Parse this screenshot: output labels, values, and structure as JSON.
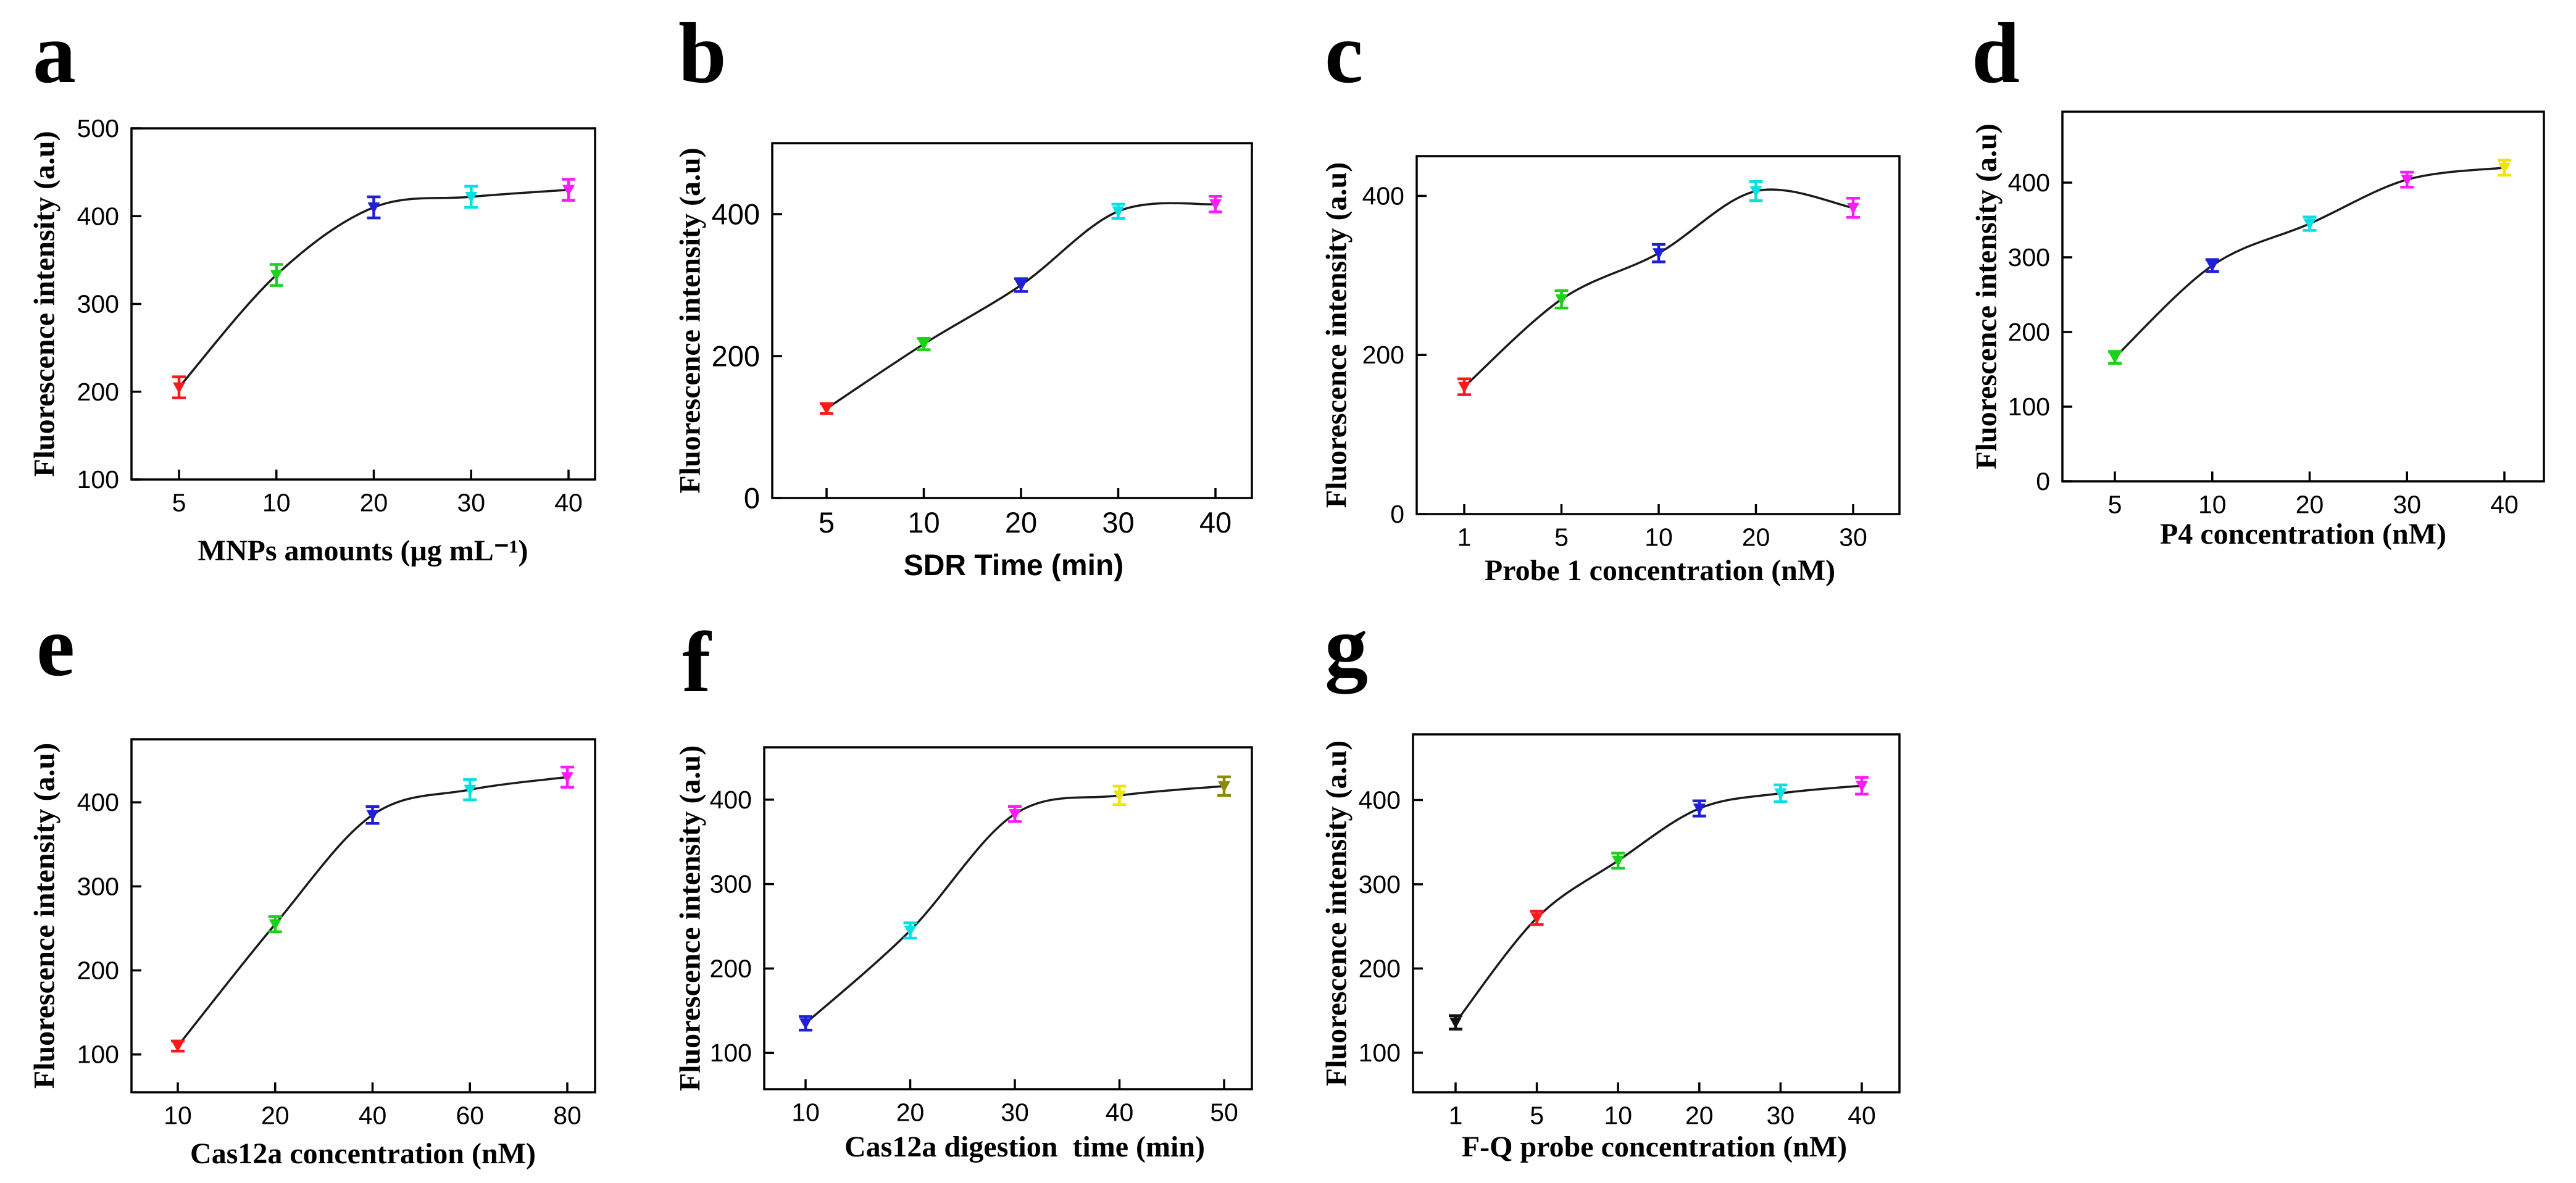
{
  "chart_data": [
    {
      "panel": "a",
      "type": "line",
      "title": "",
      "xlabel": "MNPs amounts (μg mL⁻¹)",
      "ylabel": "Fluorescence intensity (a.u)",
      "categories": [
        "5",
        "10",
        "20",
        "30",
        "40"
      ],
      "values": [
        205,
        333,
        410,
        422,
        430
      ],
      "errors": [
        12,
        12,
        12,
        12,
        12
      ],
      "point_colors": [
        "#ff1a1a",
        "#1ad21a",
        "#1f1fd6",
        "#00e1e1",
        "#ff1aff"
      ],
      "ylim": [
        100,
        500
      ],
      "yticks": [
        100,
        200,
        300,
        400,
        500
      ]
    },
    {
      "panel": "b",
      "type": "line",
      "title": "",
      "xlabel": "SDR Time (min)",
      "ylabel": "Fluorescence intensity (a.u)",
      "categories": [
        "5",
        "10",
        "20",
        "30",
        "40"
      ],
      "values": [
        126,
        217,
        300,
        404,
        414
      ],
      "errors": [
        7,
        8,
        9,
        10,
        11
      ],
      "point_colors": [
        "#ff1a1a",
        "#1ad21a",
        "#1f1fd6",
        "#00e1e1",
        "#ff1aff"
      ],
      "ylim": [
        0,
        500
      ],
      "yticks": [
        0,
        200,
        400
      ]
    },
    {
      "panel": "c",
      "type": "line",
      "title": "",
      "xlabel": "Probe 1 concentration (nM)",
      "ylabel": "Fluorescence intensity (a.u)",
      "categories": [
        "1",
        "5",
        "10",
        "20",
        "30"
      ],
      "values": [
        160,
        270,
        328,
        406,
        385
      ],
      "errors": [
        10,
        11,
        11,
        12,
        12
      ],
      "point_colors": [
        "#ff1a1a",
        "#1ad21a",
        "#1f1fd6",
        "#00e1e1",
        "#ff1aff"
      ],
      "ylim": [
        0,
        450
      ],
      "yticks": [
        0,
        200,
        400
      ]
    },
    {
      "panel": "d",
      "type": "line",
      "title": "",
      "xlabel": "P4 concentration (nM)",
      "ylabel": "Fluorescence intensity (a.u)",
      "categories": [
        "5",
        "10",
        "20",
        "30",
        "40"
      ],
      "values": [
        166,
        289,
        345,
        404,
        420
      ],
      "errors": [
        8,
        8,
        9,
        10,
        10
      ],
      "point_colors": [
        "#1ad21a",
        "#1f1fd6",
        "#00e1e1",
        "#ff1aff",
        "#f0e400"
      ],
      "ylim": [
        0,
        495
      ],
      "yticks": [
        0,
        100,
        200,
        300,
        400
      ]
    },
    {
      "panel": "e",
      "type": "line",
      "title": "",
      "xlabel": "Cas12a concentration (nM)",
      "ylabel": "Fluorescence intensity (a.u)",
      "categories": [
        "10",
        "20",
        "40",
        "60",
        "80"
      ],
      "values": [
        110,
        255,
        385,
        415,
        430
      ],
      "errors": [
        6,
        9,
        10,
        12,
        12
      ],
      "point_colors": [
        "#ff1a1a",
        "#1ad21a",
        "#1f1fd6",
        "#00e1e1",
        "#ff1aff"
      ],
      "ylim": [
        55,
        475
      ],
      "yticks": [
        100,
        200,
        300,
        400
      ]
    },
    {
      "panel": "f",
      "type": "line",
      "title": "",
      "xlabel": "Cas12a digestion  time (min)",
      "ylabel": "Fluorescence intensity (a.u)",
      "categories": [
        "10",
        "20",
        "30",
        "40",
        "50"
      ],
      "values": [
        135,
        245,
        383,
        405,
        416
      ],
      "errors": [
        8,
        9,
        9,
        11,
        11
      ],
      "point_colors": [
        "#1f1fd6",
        "#00e1e1",
        "#ff1aff",
        "#f0e400",
        "#8c8a00"
      ],
      "ylim": [
        57,
        462
      ],
      "yticks": [
        100,
        200,
        300,
        400
      ]
    },
    {
      "panel": "g",
      "type": "line",
      "title": "",
      "xlabel": "F-Q probe concentration (nM)",
      "ylabel": "Fluorescence intensity (a.u)",
      "categories": [
        "1",
        "5",
        "10",
        "20",
        "30",
        "40"
      ],
      "values": [
        136,
        260,
        328,
        390,
        408,
        417
      ],
      "errors": [
        8,
        8,
        9,
        9,
        10,
        10
      ],
      "point_colors": [
        "#111111",
        "#ff1a1a",
        "#1ad21a",
        "#1f1fd6",
        "#00e1e1",
        "#ff1aff"
      ],
      "ylim": [
        53,
        478
      ],
      "yticks": [
        100,
        200,
        300,
        400
      ]
    }
  ]
}
